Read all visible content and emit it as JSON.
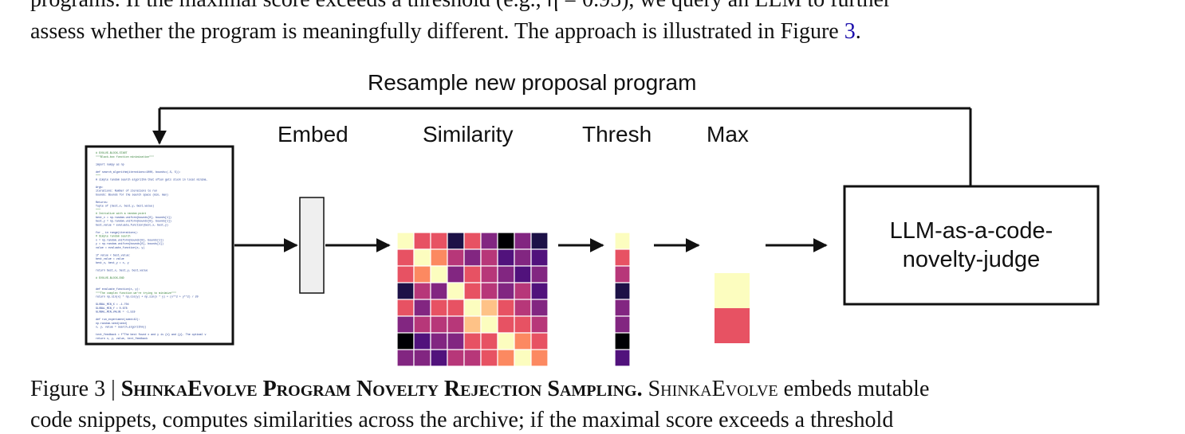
{
  "text_top": {
    "line1": "programs. If the maximal score exceeds a threshold (e.g., η = 0.95), we query an LLM to further",
    "line2_before": "assess whether the program is meaningfully different. The approach is illustrated in Figure ",
    "line2_link": "3",
    "line2_after": "."
  },
  "figure": {
    "resample_label": "Resample new proposal program",
    "embed_label": "Embed",
    "similarity_label": "Similarity",
    "thresh_label": "Thresh",
    "max_label": "Max",
    "judge_line1": "LLM-as-a-code-",
    "judge_line2": "novelty-judge",
    "code_snippet": [
      "# EVOLVE-BLOCK-START",
      "\"\"\"Black-box function minimization\"\"\"",
      "",
      "import numpy as np",
      "",
      "def search_algorithm(iterations=1000, bounds=(-5, 5)):",
      "    \"\"\"",
      "    A simple random search algorithm that often gets stuck in local minima.",
      "",
      "    Args:",
      "        iterations: Number of iterations to run",
      "        bounds: Bounds for the search space (min, max)",
      "",
      "    Returns:",
      "        Tuple of (best_x, best_y, best_value)",
      "    \"\"\"",
      "    # Initialize with a random point",
      "    best_x = np.random.uniform(bounds[0], bounds[1])",
      "    best_y = np.random.uniform(bounds[0], bounds[1])",
      "    best_value = evaluate_function(best_x, best_y)",
      "",
      "    for _ in range(iterations):",
      "        # Simple random search",
      "        x = np.random.uniform(bounds[0], bounds[1])",
      "        y = np.random.uniform(bounds[0], bounds[1])",
      "        value = evaluate_function(x, y)",
      "",
      "        if value < best_value:",
      "            best_value = value",
      "            best_x, best_y = x, y",
      "",
      "    return best_x, best_y, best_value",
      "",
      "# EVOLVE-BLOCK-END",
      "",
      "",
      "def evaluate_function(x, y):",
      "    \"\"\"The complex function we're trying to minimize\"\"\"",
      "    return np.sin(x) * np.cos(y) + np.sin(x * y) + (x**2 + y**2) / 20",
      "",
      "GLOBAL_MIN_X = -1.704",
      "GLOBAL_MIN_Y = 0.678",
      "GLOBAL_MIN_VALUE = -1.519",
      "",
      "def run_experiment(seed=42):",
      "    np.random.seed(seed)",
      "    x, y, value = search_algorithm()",
      "",
      "    text_feedback = f\"The best found x and y is {x} and {y}. The optimal v",
      "    return x, y, value, text_feedback"
    ],
    "colors": {
      "c0": "#000004",
      "c1": "#1d1147",
      "c2": "#51127c",
      "c3": "#822681",
      "c4": "#b73779",
      "c5": "#e75263",
      "c6": "#fc8961",
      "c7": "#fec287",
      "c8": "#fcfdbf"
    },
    "similarity_matrix": [
      [
        8,
        5,
        5,
        1,
        5,
        3,
        0,
        3,
        1
      ],
      [
        5,
        8,
        6,
        4,
        3,
        4,
        2,
        3,
        2
      ],
      [
        5,
        6,
        8,
        3,
        5,
        4,
        3,
        2,
        3
      ],
      [
        1,
        4,
        3,
        8,
        5,
        4,
        3,
        4,
        2
      ],
      [
        5,
        3,
        5,
        5,
        8,
        7,
        5,
        4,
        3
      ],
      [
        3,
        4,
        4,
        4,
        7,
        8,
        5,
        5,
        4
      ],
      [
        0,
        2,
        3,
        3,
        5,
        5,
        8,
        6,
        5
      ],
      [
        3,
        3,
        2,
        4,
        4,
        5,
        6,
        8,
        6
      ],
      [
        1,
        2,
        3,
        2,
        3,
        4,
        5,
        6,
        8
      ]
    ],
    "thresh_column": [
      8,
      5,
      4,
      1,
      3,
      3,
      0,
      2,
      1
    ],
    "max_column": [
      8,
      5
    ]
  },
  "caption": {
    "fig_prefix": "Figure 3 | ",
    "title": "ShinkaEvolve Program Novelty Rejection Sampling.",
    "body_sc": "ShinkaEvolve",
    "body_rest": " embeds mutable",
    "line2": "code snippets, computes similarities across the archive; if the maximal score exceeds a threshold"
  }
}
